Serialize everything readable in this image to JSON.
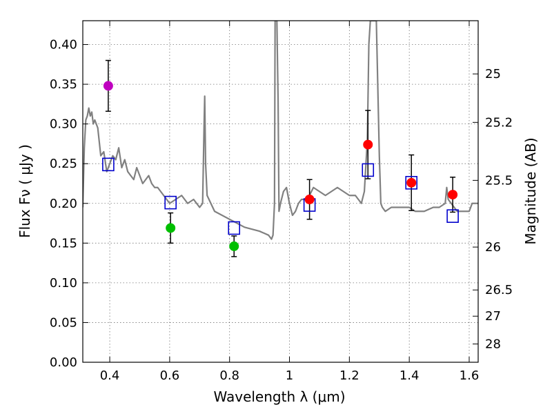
{
  "chart_data": {
    "type": "scatter",
    "xlabel": "Wavelength  λ (μm)",
    "ylabel": "Flux  Fν  ( μJy )",
    "ylabel_right": "Magnitude (AB)",
    "xlim": [
      0.31,
      1.63
    ],
    "ylim": [
      0.0,
      0.43
    ],
    "grid": true,
    "x_ticks": [
      0.4,
      0.6,
      0.8,
      1.0,
      1.2,
      1.4,
      1.6
    ],
    "x_tick_labels": [
      "0.4",
      "0.6",
      "0.8",
      "1",
      "1.2",
      "1.4",
      "1.6"
    ],
    "y_ticks": [
      0.0,
      0.05,
      0.1,
      0.15,
      0.2,
      0.25,
      0.3,
      0.35,
      0.4
    ],
    "y_tick_labels": [
      "0.00",
      "0.05",
      "0.10",
      "0.15",
      "0.20",
      "0.25",
      "0.30",
      "0.35",
      "0.40"
    ],
    "right_ticks": [
      {
        "label": "25",
        "flux": 0.363
      },
      {
        "label": "25.2",
        "flux": 0.302
      },
      {
        "label": "25.5",
        "flux": 0.229
      },
      {
        "label": "26",
        "flux": 0.145
      },
      {
        "label": "26.5",
        "flux": 0.091
      },
      {
        "label": "27",
        "flux": 0.058
      },
      {
        "label": "28",
        "flux": 0.023
      }
    ],
    "series": [
      {
        "name": "template spectrum",
        "type": "line",
        "color": "#808080",
        "x": [
          0.31,
          0.315,
          0.32,
          0.325,
          0.33,
          0.335,
          0.34,
          0.345,
          0.35,
          0.36,
          0.37,
          0.38,
          0.39,
          0.4,
          0.41,
          0.42,
          0.43,
          0.44,
          0.45,
          0.46,
          0.47,
          0.48,
          0.49,
          0.5,
          0.51,
          0.52,
          0.53,
          0.54,
          0.55,
          0.56,
          0.57,
          0.58,
          0.6,
          0.62,
          0.64,
          0.66,
          0.68,
          0.7,
          0.71,
          0.715,
          0.717,
          0.72,
          0.725,
          0.75,
          0.8,
          0.85,
          0.9,
          0.93,
          0.94,
          0.945,
          0.95,
          0.952,
          0.955,
          0.958,
          0.962,
          0.965,
          0.97,
          0.98,
          0.99,
          1.0,
          1.01,
          1.02,
          1.03,
          1.04,
          1.06,
          1.08,
          1.1,
          1.12,
          1.14,
          1.16,
          1.18,
          1.2,
          1.22,
          1.24,
          1.25,
          1.26,
          1.265,
          1.27,
          1.28,
          1.29,
          1.3,
          1.305,
          1.31,
          1.32,
          1.34,
          1.36,
          1.38,
          1.4,
          1.42,
          1.45,
          1.48,
          1.5,
          1.52,
          1.525,
          1.53,
          1.54,
          1.56,
          1.58,
          1.6,
          1.61,
          1.62,
          1.63
        ],
        "y": [
          0.195,
          0.27,
          0.305,
          0.31,
          0.32,
          0.31,
          0.315,
          0.3,
          0.305,
          0.295,
          0.26,
          0.265,
          0.24,
          0.25,
          0.26,
          0.255,
          0.27,
          0.245,
          0.255,
          0.24,
          0.235,
          0.23,
          0.245,
          0.235,
          0.225,
          0.23,
          0.235,
          0.225,
          0.22,
          0.22,
          0.215,
          0.21,
          0.2,
          0.205,
          0.21,
          0.2,
          0.205,
          0.195,
          0.2,
          0.3,
          0.335,
          0.25,
          0.21,
          0.19,
          0.18,
          0.17,
          0.165,
          0.16,
          0.155,
          0.16,
          0.2,
          0.43,
          0.43,
          0.43,
          0.33,
          0.19,
          0.2,
          0.215,
          0.22,
          0.2,
          0.185,
          0.19,
          0.2,
          0.205,
          0.205,
          0.22,
          0.215,
          0.21,
          0.215,
          0.22,
          0.215,
          0.21,
          0.21,
          0.2,
          0.215,
          0.28,
          0.4,
          0.43,
          0.43,
          0.43,
          0.26,
          0.2,
          0.195,
          0.19,
          0.195,
          0.195,
          0.195,
          0.195,
          0.19,
          0.19,
          0.195,
          0.195,
          0.2,
          0.22,
          0.205,
          0.2,
          0.19,
          0.19,
          0.19,
          0.2,
          0.2,
          0.2
        ]
      },
      {
        "name": "observed photometry",
        "type": "scatter",
        "marker": "circle",
        "points": [
          {
            "x": 0.395,
            "y": 0.348,
            "err": 0.032,
            "color": "#bf00bf"
          },
          {
            "x": 0.603,
            "y": 0.169,
            "err": 0.019,
            "color": "#00bf00"
          },
          {
            "x": 0.815,
            "y": 0.146,
            "err": 0.013,
            "color": "#00bf00"
          },
          {
            "x": 1.067,
            "y": 0.205,
            "err": 0.025,
            "color": "#ff0000"
          },
          {
            "x": 1.262,
            "y": 0.274,
            "err": 0.043,
            "color": "#ff0000"
          },
          {
            "x": 1.407,
            "y": 0.226,
            "err": 0.035,
            "color": "#ff0000"
          },
          {
            "x": 1.545,
            "y": 0.211,
            "err": 0.022,
            "color": "#ff0000"
          }
        ]
      },
      {
        "name": "model photometry",
        "type": "scatter",
        "marker": "open-square",
        "color": "#0000cc",
        "points": [
          {
            "x": 0.395,
            "y": 0.249
          },
          {
            "x": 0.603,
            "y": 0.201
          },
          {
            "x": 0.815,
            "y": 0.169
          },
          {
            "x": 1.067,
            "y": 0.198
          },
          {
            "x": 1.262,
            "y": 0.242
          },
          {
            "x": 1.407,
            "y": 0.226
          },
          {
            "x": 1.545,
            "y": 0.184
          }
        ]
      }
    ]
  }
}
